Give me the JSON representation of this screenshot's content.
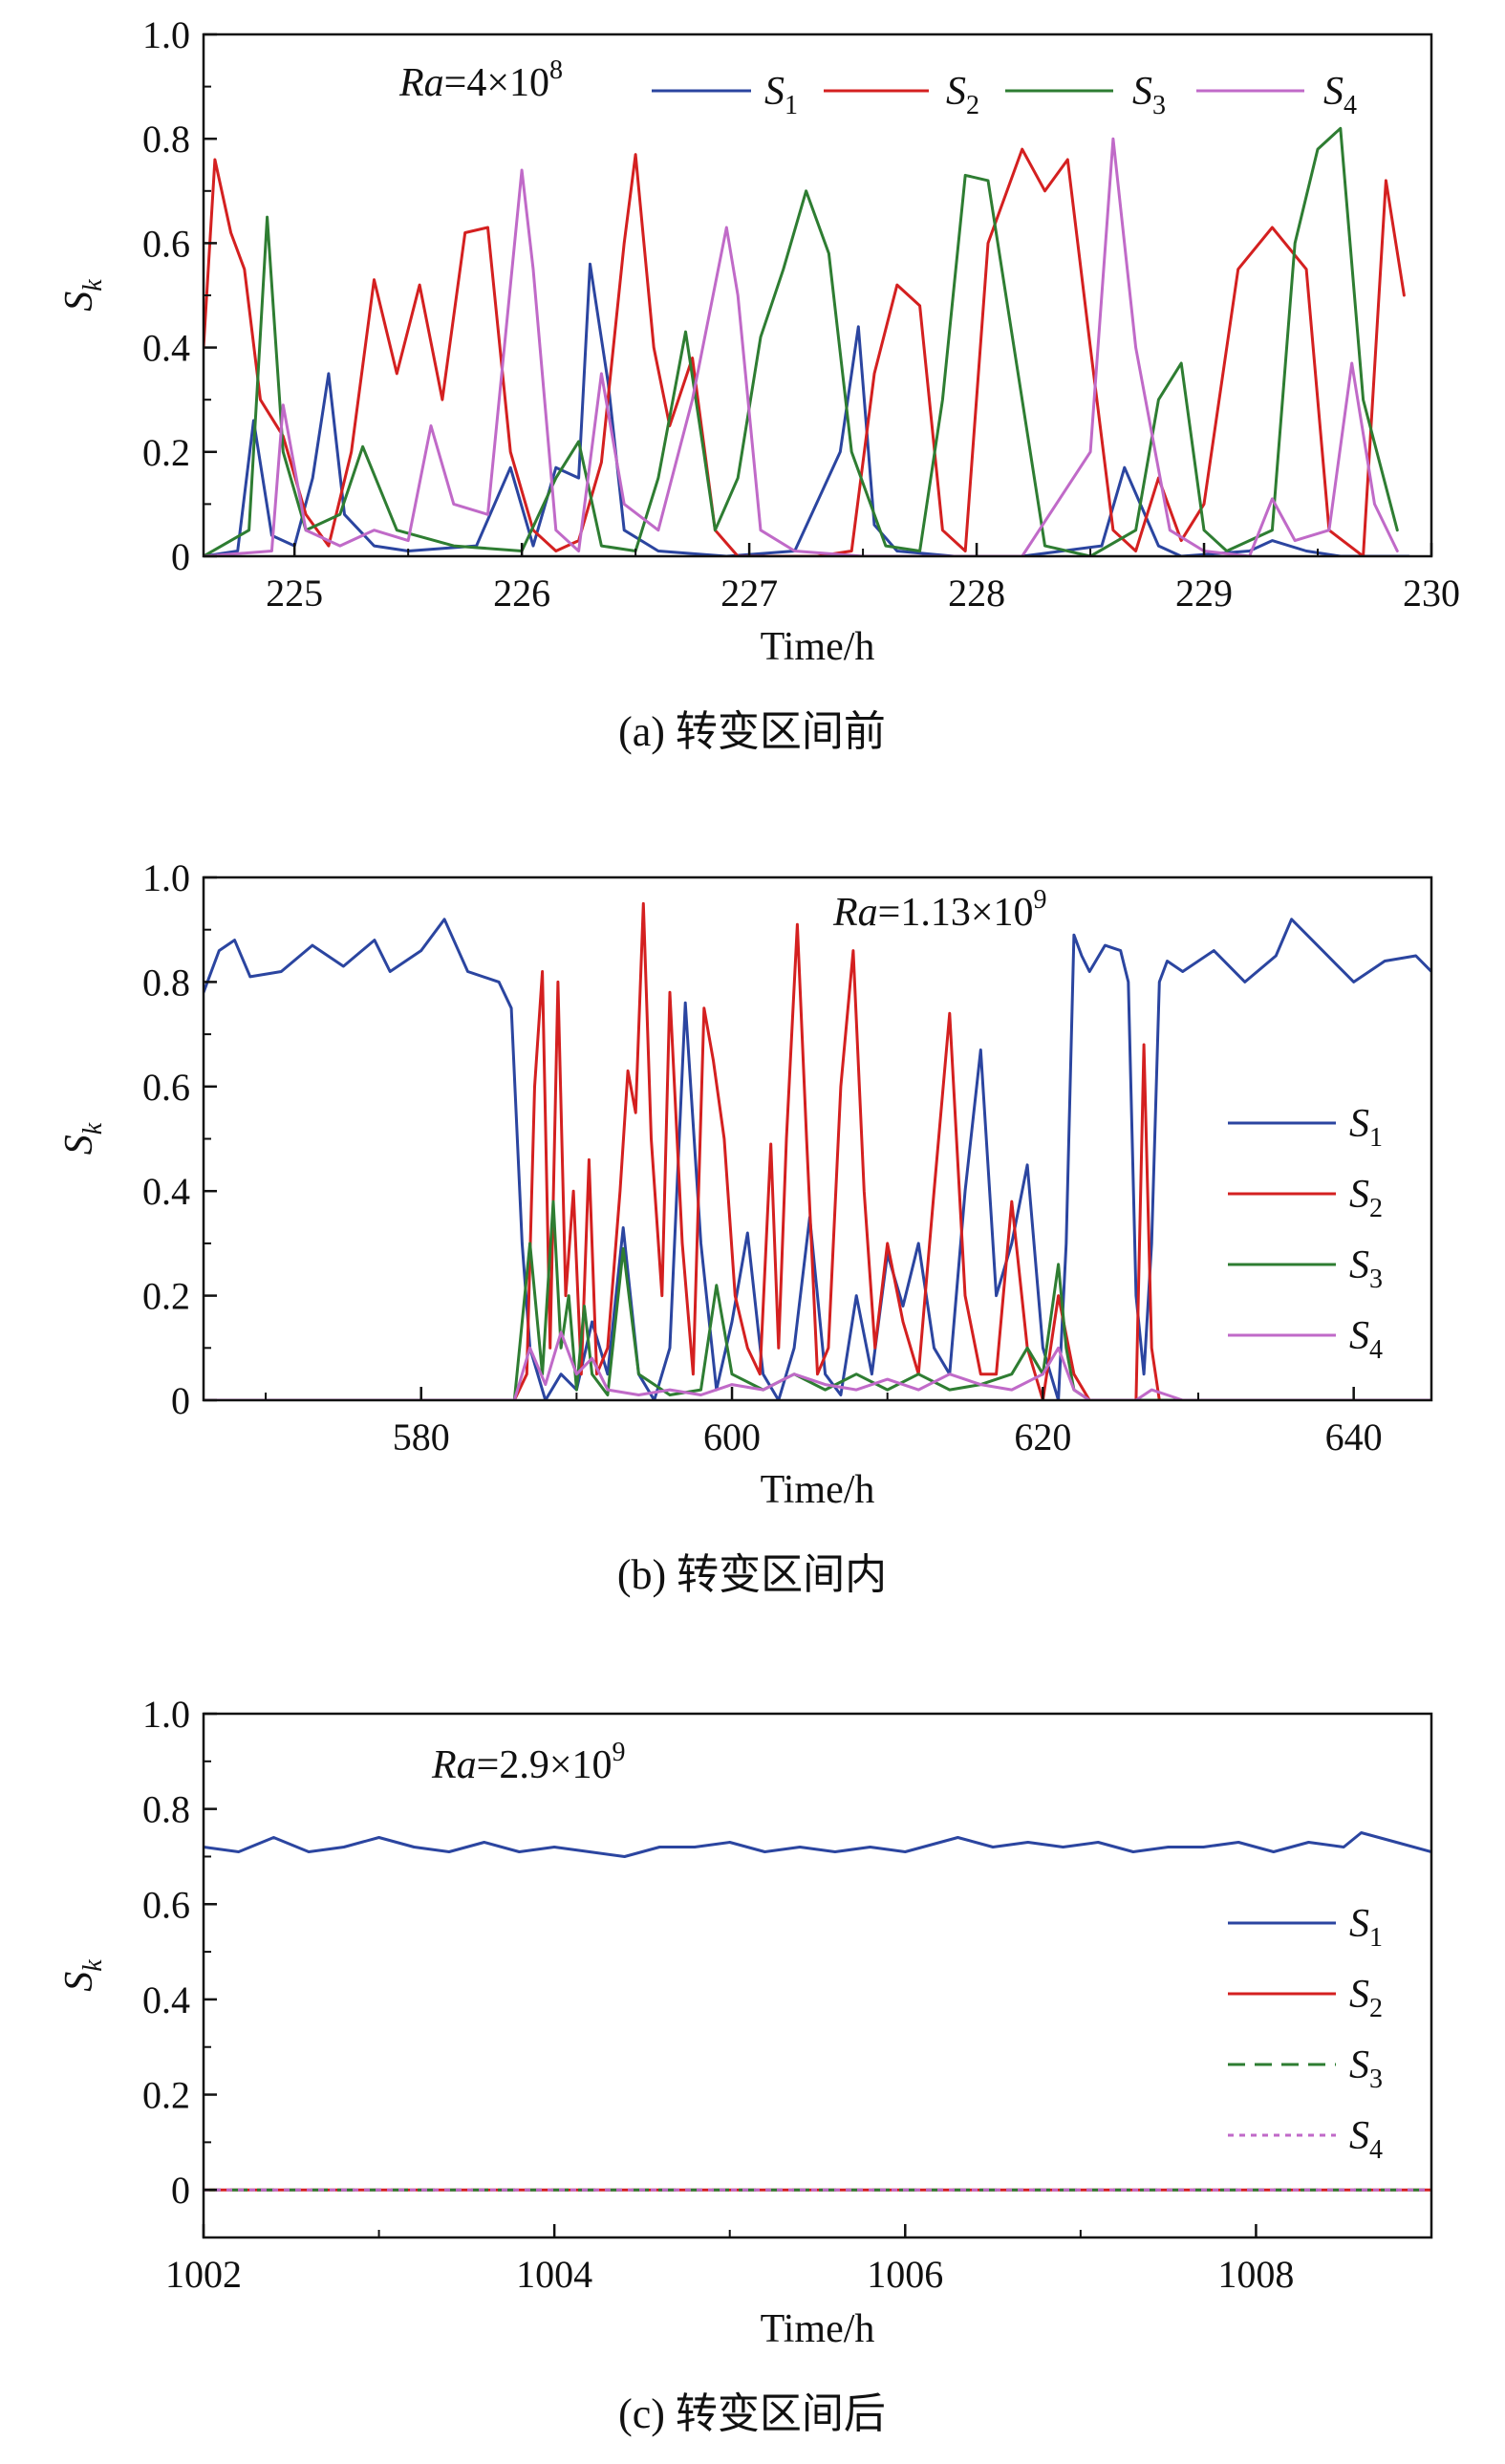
{
  "figure": {
    "panels_count": 3
  },
  "chart_data": [
    {
      "panel": "a",
      "type": "line",
      "caption": "(a) 转变区间前",
      "annotation": {
        "prefix": "Ra",
        "eq": "=4×10",
        "exp": "8"
      },
      "xlabel": "Time/h",
      "ylabel": {
        "main": "S",
        "sub": "k"
      },
      "xlim": [
        224.6,
        230
      ],
      "ylim": [
        0,
        1.0
      ],
      "xticks": [
        225,
        226,
        227,
        228,
        229,
        230
      ],
      "xtick_labels": [
        "225",
        "226",
        "227",
        "228",
        "229",
        "230"
      ],
      "yticks": [
        0,
        0.2,
        0.4,
        0.6,
        0.8,
        1.0
      ],
      "ytick_labels": [
        "0",
        "0.2",
        "0.4",
        "0.6",
        "0.8",
        "1.0"
      ],
      "legend_position": "top-inline",
      "series": [
        {
          "name": "S1",
          "label_main": "S",
          "label_sub": "1",
          "color": "#2b45a0",
          "dash": "",
          "x": [
            224.6,
            224.75,
            224.82,
            224.9,
            225.0,
            225.08,
            225.15,
            225.22,
            225.35,
            225.5,
            225.8,
            225.95,
            226.05,
            226.15,
            226.25,
            226.3,
            226.38,
            226.45,
            226.6,
            226.9,
            227.2,
            227.4,
            227.48,
            227.55,
            227.65,
            227.9,
            228.2,
            228.55,
            228.65,
            228.72,
            228.8,
            228.9,
            229.2,
            229.3,
            229.45,
            229.6,
            229.9
          ],
          "y": [
            0,
            0.01,
            0.26,
            0.04,
            0.02,
            0.15,
            0.35,
            0.08,
            0.02,
            0.01,
            0.02,
            0.17,
            0.02,
            0.17,
            0.15,
            0.56,
            0.33,
            0.05,
            0.01,
            0.0,
            0.01,
            0.2,
            0.44,
            0.06,
            0.01,
            0.0,
            0.0,
            0.02,
            0.17,
            0.1,
            0.02,
            0.0,
            0.01,
            0.03,
            0.01,
            0.0,
            0.0
          ]
        },
        {
          "name": "S2",
          "label_main": "S",
          "label_sub": "2",
          "color": "#d42020",
          "dash": "",
          "x": [
            224.6,
            224.65,
            224.72,
            224.78,
            224.85,
            224.95,
            225.05,
            225.15,
            225.25,
            225.35,
            225.45,
            225.55,
            225.65,
            225.75,
            225.85,
            225.95,
            226.05,
            226.15,
            226.25,
            226.35,
            226.45,
            226.5,
            226.58,
            226.65,
            226.75,
            226.85,
            226.95,
            227.3,
            227.45,
            227.55,
            227.65,
            227.75,
            227.85,
            227.95,
            228.05,
            228.2,
            228.3,
            228.4,
            228.5,
            228.6,
            228.7,
            228.8,
            228.9,
            229.0,
            229.15,
            229.3,
            229.45,
            229.55,
            229.7,
            229.8,
            229.88
          ],
          "y": [
            0.4,
            0.76,
            0.62,
            0.55,
            0.3,
            0.23,
            0.08,
            0.02,
            0.2,
            0.53,
            0.35,
            0.52,
            0.3,
            0.62,
            0.63,
            0.2,
            0.05,
            0.01,
            0.03,
            0.18,
            0.6,
            0.77,
            0.4,
            0.25,
            0.38,
            0.05,
            0.0,
            0.0,
            0.01,
            0.35,
            0.52,
            0.48,
            0.05,
            0.01,
            0.6,
            0.78,
            0.7,
            0.76,
            0.4,
            0.05,
            0.01,
            0.15,
            0.03,
            0.1,
            0.55,
            0.63,
            0.55,
            0.05,
            0.0,
            0.72,
            0.5
          ]
        },
        {
          "name": "S3",
          "label_main": "S",
          "label_sub": "3",
          "color": "#2e7d32",
          "dash": "",
          "x": [
            224.6,
            224.8,
            224.88,
            224.95,
            225.05,
            225.2,
            225.3,
            225.45,
            225.7,
            226.0,
            226.15,
            226.25,
            226.35,
            226.5,
            226.6,
            226.72,
            226.8,
            226.85,
            226.95,
            227.05,
            227.15,
            227.25,
            227.35,
            227.45,
            227.6,
            227.75,
            227.85,
            227.95,
            228.05,
            228.3,
            228.5,
            228.7,
            228.8,
            228.9,
            229.0,
            229.1,
            229.3,
            229.4,
            229.5,
            229.6,
            229.7,
            229.85
          ],
          "y": [
            0,
            0.05,
            0.65,
            0.2,
            0.05,
            0.08,
            0.21,
            0.05,
            0.02,
            0.01,
            0.15,
            0.22,
            0.02,
            0.01,
            0.15,
            0.43,
            0.2,
            0.05,
            0.15,
            0.42,
            0.55,
            0.7,
            0.58,
            0.2,
            0.02,
            0.01,
            0.3,
            0.73,
            0.72,
            0.02,
            0.0,
            0.05,
            0.3,
            0.37,
            0.05,
            0.01,
            0.05,
            0.6,
            0.78,
            0.82,
            0.3,
            0.05
          ]
        },
        {
          "name": "S4",
          "label_main": "S",
          "label_sub": "4",
          "color": "#c06ac8",
          "dash": "",
          "x": [
            224.6,
            224.9,
            224.95,
            225.05,
            225.2,
            225.35,
            225.5,
            225.6,
            225.7,
            225.85,
            226.0,
            226.05,
            226.15,
            226.25,
            226.35,
            226.45,
            226.6,
            226.75,
            226.9,
            226.95,
            227.05,
            227.2,
            227.5,
            227.8,
            228.2,
            228.5,
            228.6,
            228.7,
            228.85,
            229.0,
            229.2,
            229.3,
            229.4,
            229.55,
            229.65,
            229.75,
            229.85
          ],
          "y": [
            0,
            0.01,
            0.29,
            0.05,
            0.02,
            0.05,
            0.03,
            0.25,
            0.1,
            0.08,
            0.74,
            0.55,
            0.05,
            0.01,
            0.35,
            0.1,
            0.05,
            0.3,
            0.63,
            0.5,
            0.05,
            0.01,
            0.0,
            0.0,
            0.0,
            0.2,
            0.8,
            0.4,
            0.05,
            0.01,
            0.0,
            0.11,
            0.03,
            0.05,
            0.37,
            0.1,
            0.01
          ]
        }
      ]
    },
    {
      "panel": "b",
      "type": "line",
      "caption": "(b) 转变区间内",
      "annotation": {
        "prefix": "Ra",
        "eq": "=1.13×10",
        "exp": "9"
      },
      "xlabel": "Time/h",
      "ylabel": {
        "main": "S",
        "sub": "k"
      },
      "xlim": [
        566,
        645
      ],
      "ylim": [
        0,
        1.0
      ],
      "xticks": [
        580,
        600,
        620,
        640
      ],
      "xtick_labels": [
        "580",
        "600",
        "620",
        "640"
      ],
      "yticks": [
        0,
        0.2,
        0.4,
        0.6,
        0.8,
        1.0
      ],
      "ytick_labels": [
        "0",
        "0.2",
        "0.4",
        "0.6",
        "0.8",
        "1.0"
      ],
      "legend_position": "right",
      "series": [
        {
          "name": "S1",
          "label_main": "S",
          "label_sub": "1",
          "color": "#2b45a0",
          "dash": "",
          "x": [
            566,
            567,
            568,
            569,
            571,
            573,
            575,
            577,
            578,
            580,
            581.5,
            583,
            585,
            585.8,
            586.5,
            587,
            588,
            589,
            590,
            591,
            592,
            593,
            594,
            595,
            596,
            597,
            598,
            599,
            600,
            601,
            602,
            603,
            604,
            605,
            606,
            607,
            608,
            609,
            610,
            611,
            612,
            613,
            614,
            615,
            616,
            617,
            618,
            619,
            620,
            621,
            621.5,
            622,
            622.5,
            623,
            624,
            625,
            625.5,
            626,
            626.5,
            627,
            627.5,
            628,
            629,
            631,
            633,
            635,
            636,
            638,
            640,
            642,
            644,
            645
          ],
          "y": [
            0.78,
            0.86,
            0.88,
            0.81,
            0.82,
            0.87,
            0.83,
            0.88,
            0.82,
            0.86,
            0.92,
            0.82,
            0.8,
            0.75,
            0.3,
            0.1,
            0.0,
            0.05,
            0.02,
            0.15,
            0.05,
            0.33,
            0.05,
            0.0,
            0.1,
            0.76,
            0.3,
            0.02,
            0.15,
            0.32,
            0.05,
            0.0,
            0.1,
            0.35,
            0.05,
            0.01,
            0.2,
            0.05,
            0.28,
            0.18,
            0.3,
            0.1,
            0.05,
            0.4,
            0.67,
            0.2,
            0.3,
            0.45,
            0.1,
            0.0,
            0.3,
            0.89,
            0.85,
            0.82,
            0.87,
            0.86,
            0.8,
            0.2,
            0.05,
            0.3,
            0.8,
            0.84,
            0.82,
            0.86,
            0.8,
            0.85,
            0.92,
            0.86,
            0.8,
            0.84,
            0.85,
            0.82
          ]
        },
        {
          "name": "S2",
          "label_main": "S",
          "label_sub": "2",
          "color": "#d42020",
          "dash": "",
          "x": [
            566,
            586,
            586.8,
            587.3,
            587.8,
            588.3,
            588.8,
            589.3,
            589.8,
            590.3,
            590.8,
            591.3,
            592,
            592.8,
            593.3,
            593.8,
            594.3,
            594.8,
            595.5,
            596,
            596.8,
            597.5,
            598.2,
            598.8,
            599.5,
            600.2,
            601,
            601.8,
            602.5,
            603,
            603.5,
            604.2,
            604.8,
            605.5,
            606.2,
            607,
            607.8,
            608.5,
            609.2,
            610,
            611,
            612,
            613,
            614,
            615,
            616,
            617,
            618,
            619,
            620,
            621,
            622,
            623,
            626,
            626.5,
            627,
            627.5,
            628,
            645
          ],
          "y": [
            0,
            0,
            0.05,
            0.6,
            0.82,
            0.1,
            0.8,
            0.2,
            0.4,
            0.05,
            0.46,
            0.05,
            0.1,
            0.4,
            0.63,
            0.55,
            0.95,
            0.5,
            0.2,
            0.78,
            0.3,
            0.05,
            0.75,
            0.65,
            0.5,
            0.2,
            0.1,
            0.05,
            0.49,
            0.1,
            0.5,
            0.91,
            0.5,
            0.05,
            0.1,
            0.6,
            0.86,
            0.4,
            0.1,
            0.3,
            0.15,
            0.05,
            0.4,
            0.74,
            0.2,
            0.05,
            0.05,
            0.38,
            0.1,
            0.0,
            0.2,
            0.05,
            0.0,
            0.0,
            0.68,
            0.1,
            0.0,
            0.0,
            0.0
          ]
        },
        {
          "name": "S3",
          "label_main": "S",
          "label_sub": "3",
          "color": "#2e7d32",
          "dash": "",
          "x": [
            566,
            586,
            587,
            587.8,
            588.5,
            589,
            589.5,
            590,
            590.5,
            591,
            592,
            593,
            594,
            596,
            598,
            599,
            600,
            602,
            604,
            606,
            608,
            610,
            612,
            614,
            616,
            618,
            619,
            620,
            621,
            621.5,
            622,
            623,
            645
          ],
          "y": [
            0,
            0,
            0.3,
            0.05,
            0.38,
            0.1,
            0.2,
            0.02,
            0.18,
            0.05,
            0.01,
            0.29,
            0.05,
            0.01,
            0.02,
            0.22,
            0.05,
            0.02,
            0.05,
            0.02,
            0.05,
            0.02,
            0.05,
            0.02,
            0.03,
            0.05,
            0.1,
            0.05,
            0.26,
            0.1,
            0.02,
            0.0,
            0.0
          ]
        },
        {
          "name": "S4",
          "label_main": "S",
          "label_sub": "4",
          "color": "#c06ac8",
          "dash": "",
          "x": [
            566,
            586,
            587,
            588,
            589,
            590,
            591,
            592,
            594,
            596,
            598,
            600,
            602,
            604,
            606,
            608,
            610,
            612,
            614,
            616,
            618,
            620,
            621,
            622,
            623,
            626,
            627,
            628,
            629,
            645
          ],
          "y": [
            0,
            0,
            0.1,
            0.03,
            0.13,
            0.05,
            0.08,
            0.02,
            0.01,
            0.02,
            0.01,
            0.03,
            0.02,
            0.05,
            0.03,
            0.02,
            0.04,
            0.02,
            0.05,
            0.03,
            0.02,
            0.05,
            0.1,
            0.02,
            0.0,
            0.0,
            0.02,
            0.01,
            0.0,
            0.0
          ]
        }
      ]
    },
    {
      "panel": "c",
      "type": "line",
      "caption": "(c) 转变区间后",
      "annotation": {
        "prefix": "Ra",
        "eq": "=2.9×10",
        "exp": "9"
      },
      "xlabel": "Time/h",
      "ylabel": {
        "main": "S",
        "sub": "k"
      },
      "xlim": [
        1002,
        1009
      ],
      "ylim": [
        -0.1,
        1.0
      ],
      "xticks": [
        1002,
        1004,
        1006,
        1008
      ],
      "xtick_labels": [
        "1002",
        "1004",
        "1006",
        "1008"
      ],
      "yticks": [
        0,
        0.2,
        0.4,
        0.6,
        0.8,
        1.0
      ],
      "ytick_labels": [
        "0",
        "0.2",
        "0.4",
        "0.6",
        "0.8",
        "1.0"
      ],
      "legend_position": "right",
      "series": [
        {
          "name": "S1",
          "label_main": "S",
          "label_sub": "1",
          "color": "#2b45a0",
          "dash": "",
          "x": [
            1002,
            1002.2,
            1002.4,
            1002.6,
            1002.8,
            1003.0,
            1003.2,
            1003.4,
            1003.6,
            1003.8,
            1004.0,
            1004.2,
            1004.4,
            1004.6,
            1004.8,
            1005.0,
            1005.2,
            1005.4,
            1005.6,
            1005.8,
            1006.0,
            1006.2,
            1006.3,
            1006.5,
            1006.7,
            1006.9,
            1007.1,
            1007.3,
            1007.5,
            1007.7,
            1007.9,
            1008.1,
            1008.3,
            1008.5,
            1008.6,
            1008.8,
            1009.0
          ],
          "y": [
            0.72,
            0.71,
            0.74,
            0.71,
            0.72,
            0.74,
            0.72,
            0.71,
            0.73,
            0.71,
            0.72,
            0.71,
            0.7,
            0.72,
            0.72,
            0.73,
            0.71,
            0.72,
            0.71,
            0.72,
            0.71,
            0.73,
            0.74,
            0.72,
            0.73,
            0.72,
            0.73,
            0.71,
            0.72,
            0.72,
            0.73,
            0.71,
            0.73,
            0.72,
            0.75,
            0.73,
            0.71
          ]
        },
        {
          "name": "S2",
          "label_main": "S",
          "label_sub": "2",
          "color": "#d42020",
          "dash": "",
          "x": [
            1002,
            1009
          ],
          "y": [
            0,
            0
          ]
        },
        {
          "name": "S3",
          "label_main": "S",
          "label_sub": "3",
          "color": "#2e7d32",
          "dash": "18,10",
          "x": [
            1002,
            1009
          ],
          "y": [
            0,
            0
          ]
        },
        {
          "name": "S4",
          "label_main": "S",
          "label_sub": "4",
          "color": "#c06ac8",
          "dash": "6,6",
          "x": [
            1002,
            1009
          ],
          "y": [
            0,
            0
          ]
        }
      ]
    }
  ]
}
